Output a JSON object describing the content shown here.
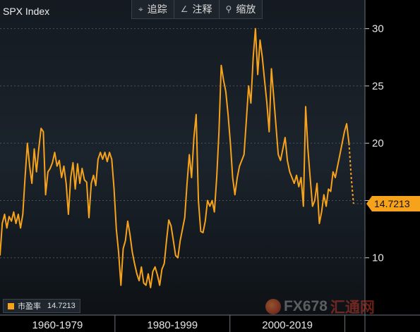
{
  "header": {
    "title": "SPX Index",
    "toolbar": [
      {
        "icon": "crosshair-icon",
        "glyph": "⌖",
        "label": "追踪"
      },
      {
        "icon": "pencil-icon",
        "glyph": "∠",
        "label": "注释"
      },
      {
        "icon": "magnifier-icon",
        "glyph": "⚲",
        "label": "缩放"
      }
    ]
  },
  "legend": {
    "label": "市盈率",
    "value": "14.7213"
  },
  "watermark": {
    "text_a": "FX678",
    "text_b": "汇通网"
  },
  "colors": {
    "line": "#f7a21b",
    "axis": "#5a626b",
    "text": "#e6e6e6"
  },
  "chart_data": {
    "type": "line",
    "title": "SPX Index",
    "series": [
      {
        "name": "市盈率",
        "points": [
          [
            1954.0,
            10.2
          ],
          [
            1954.5,
            13.0
          ],
          [
            1955.0,
            13.8
          ],
          [
            1955.5,
            12.6
          ],
          [
            1956.0,
            13.6
          ],
          [
            1956.5,
            13.2
          ],
          [
            1957.0,
            14.0
          ],
          [
            1957.5,
            13.0
          ],
          [
            1958.0,
            13.8
          ],
          [
            1958.5,
            12.6
          ],
          [
            1959.0,
            13.8
          ],
          [
            1959.5,
            17.0
          ],
          [
            1960.0,
            20.0
          ],
          [
            1960.5,
            18.0
          ],
          [
            1961.0,
            16.5
          ],
          [
            1961.5,
            19.5
          ],
          [
            1962.0,
            17.5
          ],
          [
            1962.5,
            19.5
          ],
          [
            1963.0,
            21.3
          ],
          [
            1963.5,
            21.0
          ],
          [
            1964.0,
            15.5
          ],
          [
            1964.5,
            17.5
          ],
          [
            1965.0,
            17.8
          ],
          [
            1965.5,
            18.3
          ],
          [
            1966.0,
            19.2
          ],
          [
            1966.5,
            18.0
          ],
          [
            1967.0,
            18.5
          ],
          [
            1967.5,
            17.0
          ],
          [
            1968.0,
            18.0
          ],
          [
            1968.5,
            16.5
          ],
          [
            1969.0,
            13.8
          ],
          [
            1969.5,
            17.0
          ],
          [
            1970.0,
            18.3
          ],
          [
            1970.5,
            16.0
          ],
          [
            1971.0,
            18.2
          ],
          [
            1971.5,
            16.5
          ],
          [
            1972.0,
            17.8
          ],
          [
            1972.5,
            16.8
          ],
          [
            1973.0,
            16.6
          ],
          [
            1973.5,
            13.5
          ],
          [
            1974.0,
            16.5
          ],
          [
            1974.5,
            17.2
          ],
          [
            1975.0,
            16.3
          ],
          [
            1975.5,
            18.6
          ],
          [
            1976.0,
            19.2
          ],
          [
            1976.5,
            18.6
          ],
          [
            1977.0,
            19.2
          ],
          [
            1977.5,
            18.4
          ],
          [
            1978.0,
            19.2
          ],
          [
            1978.5,
            18.6
          ],
          [
            1979.0,
            16.0
          ],
          [
            1979.5,
            12.5
          ],
          [
            1980.0,
            10.5
          ],
          [
            1980.5,
            7.6
          ],
          [
            1981.0,
            10.8
          ],
          [
            1981.5,
            11.5
          ],
          [
            1982.0,
            13.2
          ],
          [
            1982.5,
            12.0
          ],
          [
            1983.0,
            10.5
          ],
          [
            1983.5,
            9.5
          ],
          [
            1984.0,
            8.6
          ],
          [
            1984.5,
            8.0
          ],
          [
            1985.0,
            9.2
          ],
          [
            1985.5,
            7.8
          ],
          [
            1986.0,
            7.6
          ],
          [
            1986.5,
            8.6
          ],
          [
            1987.0,
            7.4
          ],
          [
            1987.5,
            8.8
          ],
          [
            1988.0,
            9.2
          ],
          [
            1988.5,
            8.5
          ],
          [
            1989.0,
            7.6
          ],
          [
            1989.5,
            9.0
          ],
          [
            1990.0,
            9.5
          ],
          [
            1990.5,
            11.5
          ],
          [
            1991.0,
            13.3
          ],
          [
            1991.5,
            12.8
          ],
          [
            1992.0,
            11.5
          ],
          [
            1992.5,
            10.2
          ],
          [
            1993.0,
            10.0
          ],
          [
            1993.5,
            11.5
          ],
          [
            1994.0,
            12.5
          ],
          [
            1994.5,
            13.5
          ],
          [
            1995.0,
            16.5
          ],
          [
            1995.5,
            19.0
          ],
          [
            1996.0,
            17.0
          ],
          [
            1996.5,
            20.5
          ],
          [
            1997.0,
            22.5
          ],
          [
            1997.5,
            15.0
          ],
          [
            1998.0,
            12.3
          ],
          [
            1998.5,
            12.2
          ],
          [
            1999.0,
            13.2
          ],
          [
            1999.5,
            15.0
          ],
          [
            2000.0,
            14.5
          ],
          [
            2000.5,
            15.0
          ],
          [
            2001.0,
            14.0
          ],
          [
            2001.5,
            17.0
          ],
          [
            2002.0,
            21.0
          ],
          [
            2002.5,
            26.8
          ],
          [
            2003.0,
            25.5
          ],
          [
            2003.5,
            24.5
          ],
          [
            2004.0,
            22.5
          ],
          [
            2004.5,
            20.0
          ],
          [
            2005.0,
            17.0
          ],
          [
            2005.5,
            15.5
          ],
          [
            2006.0,
            17.0
          ],
          [
            2006.5,
            18.0
          ],
          [
            2007.0,
            18.5
          ],
          [
            2007.5,
            19.0
          ],
          [
            2008.0,
            22.0
          ],
          [
            2008.5,
            25.0
          ],
          [
            2009.0,
            23.5
          ],
          [
            2009.5,
            27.5
          ],
          [
            2010.0,
            30.0
          ],
          [
            2010.5,
            26.0
          ],
          [
            2011.0,
            29.0
          ],
          [
            2011.5,
            27.5
          ],
          [
            2012.0,
            25.5
          ],
          [
            2012.5,
            23.5
          ],
          [
            2013.0,
            21.0
          ],
          [
            2013.5,
            26.5
          ],
          [
            2014.0,
            24.0
          ],
          [
            2014.5,
            21.5
          ],
          [
            2015.0,
            19.0
          ],
          [
            2015.5,
            18.5
          ],
          [
            2016.0,
            19.5
          ],
          [
            2016.5,
            20.5
          ],
          [
            2017.0,
            18.5
          ],
          [
            2017.5,
            17.5
          ],
          [
            2018.0,
            17.0
          ],
          [
            2018.5,
            16.5
          ],
          [
            2019.0,
            17.2
          ],
          [
            2019.5,
            16.2
          ],
          [
            2020.0,
            17.0
          ],
          [
            2020.5,
            14.5
          ],
          [
            2021.0,
            23.2
          ],
          [
            2021.5,
            19.5
          ],
          [
            2022.0,
            17.0
          ],
          [
            2022.5,
            14.5
          ],
          [
            2023.0,
            15.0
          ],
          [
            2023.5,
            16.5
          ],
          [
            2024.0,
            13.0
          ],
          [
            2024.5,
            14.0
          ],
          [
            2025.0,
            15.5
          ],
          [
            2025.5,
            14.5
          ],
          [
            2026.0,
            16.0
          ],
          [
            2026.5,
            15.8
          ],
          [
            2027.0,
            17.5
          ],
          [
            2027.5,
            17.0
          ],
          [
            2028.0,
            18.0
          ],
          [
            2028.5,
            19.0
          ],
          [
            2029.0,
            20.0
          ],
          [
            2029.5,
            21.0
          ],
          [
            2030.0,
            21.7
          ],
          [
            2030.5,
            20.0
          ]
        ]
      },
      {
        "name": "市盈率 (dashed tail)",
        "style": "dashed",
        "points": [
          [
            2030.5,
            20.0
          ],
          [
            2031.0,
            17.0
          ],
          [
            2031.5,
            14.7213
          ]
        ]
      }
    ],
    "last_value_label": "14.7213",
    "y_ticks": [
      10,
      15,
      20,
      25,
      30
    ],
    "y_tick_labels": [
      "10",
      "",
      "20",
      "25",
      "30"
    ],
    "ylim": [
      5,
      32.5
    ],
    "x_range": [
      1954,
      2034
    ],
    "x_bands": [
      {
        "label": "1960-1979",
        "from": 1954.0,
        "to": 1979.2
      },
      {
        "label": "1980-1999",
        "from": 1979.2,
        "to": 2004.4
      },
      {
        "label": "2000-2019",
        "from": 2004.4,
        "to": 2029.6
      }
    ],
    "grid": "horizontal-dotted",
    "legend_position": "bottom-left"
  }
}
